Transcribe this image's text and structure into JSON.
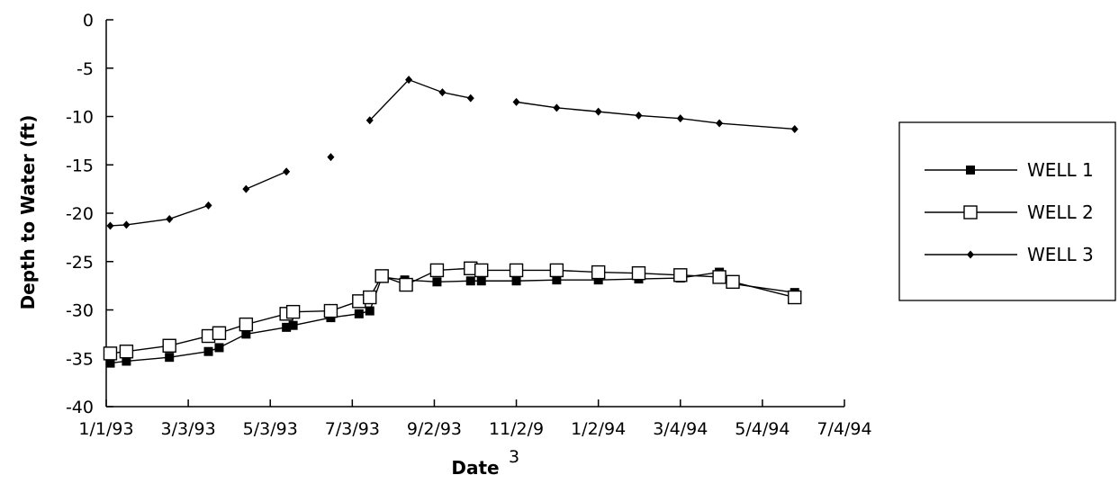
{
  "chart_data": {
    "type": "line",
    "title": "",
    "xlabel": "Date",
    "xlabel_superscript": "3",
    "ylabel": "Depth to Water (ft)",
    "ylim": [
      -40,
      0
    ],
    "yticks": [
      0,
      -5,
      -10,
      -15,
      -20,
      -25,
      -30,
      -35,
      -40
    ],
    "x_tick_labels": [
      "1/1/93",
      "3/3/93",
      "5/3/93",
      "7/3/93",
      "9/2/93",
      "11/2/9",
      "1/2/94",
      "3/4/94",
      "5/4/94",
      "7/4/94"
    ],
    "x_tick_values": [
      "1993-01-01",
      "1993-03-03",
      "1993-05-03",
      "1993-07-03",
      "1993-09-02",
      "1993-11-02",
      "1994-01-02",
      "1994-03-04",
      "1994-05-04",
      "1994-07-04"
    ],
    "grid": false,
    "legend_position": "right",
    "series": [
      {
        "name": "WELL 1",
        "marker": "filled-square",
        "x": [
          "1993-01-04",
          "1993-01-16",
          "1993-02-17",
          "1993-03-18",
          "1993-03-26",
          "1993-04-15",
          "1993-05-15",
          "1993-05-20",
          "1993-06-17",
          "1993-07-08",
          "1993-07-16",
          "1993-07-25",
          "1993-08-11",
          "1993-09-04",
          "1993-09-29",
          "1993-10-07",
          "1993-11-02",
          "1993-12-02",
          "1994-01-02",
          "1994-02-01",
          "1994-03-04",
          "1994-04-02",
          "1994-04-12",
          "1994-05-28"
        ],
        "values": [
          -35.5,
          -35.3,
          -34.9,
          -34.3,
          -33.9,
          -32.5,
          -31.8,
          -31.6,
          -30.8,
          -30.4,
          -30.1,
          -26.6,
          -26.9,
          -27.1,
          -27.0,
          -27.0,
          -27.0,
          -26.9,
          -26.9,
          -26.8,
          -26.7,
          -26.1,
          -27.3,
          -28.2
        ]
      },
      {
        "name": "WELL 2",
        "marker": "open-square",
        "x": [
          "1993-01-04",
          "1993-01-16",
          "1993-02-17",
          "1993-03-18",
          "1993-03-26",
          "1993-04-15",
          "1993-05-15",
          "1993-05-20",
          "1993-06-17",
          "1993-07-08",
          "1993-07-16",
          "1993-07-25",
          "1993-08-12",
          "1993-09-04",
          "1993-09-29",
          "1993-10-07",
          "1993-11-02",
          "1993-12-02",
          "1994-01-02",
          "1994-02-01",
          "1994-03-04",
          "1994-04-02",
          "1994-04-12",
          "1994-05-28"
        ],
        "values": [
          -34.5,
          -34.3,
          -33.7,
          -32.7,
          -32.4,
          -31.5,
          -30.4,
          -30.2,
          -30.1,
          -29.1,
          -28.7,
          -26.5,
          -27.4,
          -25.9,
          -25.7,
          -25.9,
          -25.9,
          -25.9,
          -26.1,
          -26.2,
          -26.4,
          -26.6,
          -27.1,
          -28.7
        ]
      },
      {
        "name": "WELL 3",
        "marker": "small-diamond",
        "x": [
          "1993-01-04",
          "1993-01-16",
          "1993-02-17",
          "1993-03-18",
          "1993-04-15",
          "1993-05-15",
          "1993-06-17",
          "1993-07-16",
          "1993-08-14",
          "1993-09-08",
          "1993-09-29",
          "1993-11-02",
          "1993-12-02",
          "1994-01-02",
          "1994-02-01",
          "1994-03-04",
          "1994-04-02",
          "1994-05-28"
        ],
        "values": [
          -21.3,
          -21.2,
          -20.6,
          -19.2,
          -17.5,
          -15.7,
          -14.2,
          -10.4,
          -6.2,
          -7.5,
          -8.1,
          -8.5,
          -9.1,
          -9.5,
          -9.9,
          -10.2,
          -10.7,
          -11.3
        ]
      }
    ],
    "segment_breaks": {
      "WELL 3": [
        4,
        6,
        7,
        11
      ]
    }
  }
}
